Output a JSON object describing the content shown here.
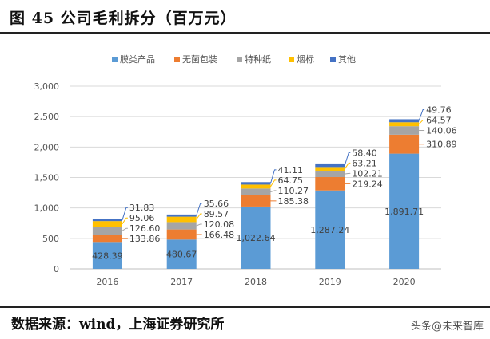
{
  "header": {
    "title": "图 45 公司毛利拆分（百万元）"
  },
  "footer": {
    "source": "数据来源：wind，上海证券研究所",
    "watermark": "头条@未来智库"
  },
  "chart_data": {
    "type": "bar",
    "stacked": true,
    "title": "",
    "xlabel": "",
    "ylabel": "",
    "categories": [
      "2016",
      "2017",
      "2018",
      "2019",
      "2020"
    ],
    "ylim": [
      0,
      3000
    ],
    "yticks": [
      "0",
      "500",
      "1,000",
      "1,500",
      "2,000",
      "2,500",
      "3,000"
    ],
    "ytick_values": [
      0,
      500,
      1000,
      1500,
      2000,
      2500,
      3000
    ],
    "grid": true,
    "legend": "top",
    "series": [
      {
        "name": "膜类产品",
        "color": "#5B9BD5",
        "values": [
          428.39,
          480.67,
          1022.64,
          1287.24,
          1891.71
        ],
        "labels": [
          "428.39",
          "480.67",
          "1,022.64",
          "1,287.24",
          "1,891.71"
        ]
      },
      {
        "name": "无菌包装",
        "color": "#ED7D31",
        "values": [
          133.86,
          166.48,
          185.38,
          219.24,
          310.89
        ],
        "labels": [
          "133.86",
          "166.48",
          "185.38",
          "219.24",
          "310.89"
        ]
      },
      {
        "name": "特种纸",
        "color": "#A5A5A5",
        "values": [
          126.6,
          120.08,
          110.27,
          102.21,
          140.06
        ],
        "labels": [
          "126.60",
          "120.08",
          "110.27",
          "102.21",
          "140.06"
        ]
      },
      {
        "name": "烟标",
        "color": "#FFC000",
        "values": [
          95.06,
          89.57,
          64.75,
          63.21,
          64.57
        ],
        "labels": [
          "95.06",
          "89.57",
          "64.75",
          "63.21",
          "64.57"
        ]
      },
      {
        "name": "其他",
        "color": "#4472C4",
        "values": [
          31.83,
          35.66,
          41.11,
          58.4,
          49.76
        ],
        "labels": [
          "31.83",
          "35.66",
          "41.11",
          "58.40",
          "49.76"
        ]
      }
    ]
  }
}
